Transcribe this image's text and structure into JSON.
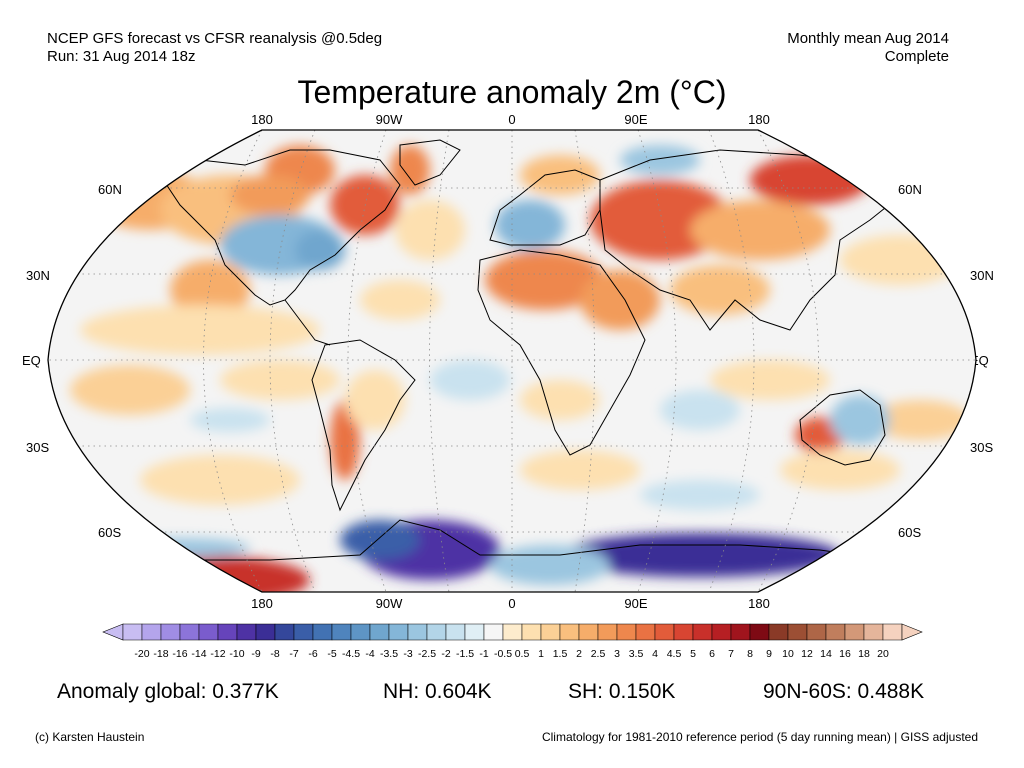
{
  "header": {
    "line1_left": "NCEP GFS forecast vs CFSR reanalysis @0.5deg",
    "line2_left": "Run: 31 Aug 2014 18z",
    "line1_right": "Monthly mean Aug 2014",
    "line2_right": "Complete"
  },
  "map": {
    "title": "Temperature anomaly 2m (°C)",
    "lon_labels": [
      "180",
      "90W",
      "0",
      "90E",
      "180"
    ],
    "lat_labels_left": [
      "60N",
      "30N",
      "EQ",
      "30S",
      "60S"
    ],
    "lat_labels_right": [
      "60N",
      "30N",
      "EQ",
      "30S",
      "60S"
    ],
    "ocean_color": "#f4f4f4",
    "coast_color": "#000000"
  },
  "colorbar": {
    "ticks": [
      "-20",
      "-18",
      "-16",
      "-14",
      "-12",
      "-10",
      "-9",
      "-8",
      "-7",
      "-6",
      "-5",
      "-4.5",
      "-4",
      "-3.5",
      "-3",
      "-2.5",
      "-2",
      "-1.5",
      "-1",
      "-0.5",
      "0.5",
      "1",
      "1.5",
      "2",
      "2.5",
      "3",
      "3.5",
      "4",
      "4.5",
      "5",
      "6",
      "7",
      "8",
      "9",
      "10",
      "12",
      "14",
      "16",
      "18",
      "20"
    ],
    "colors": [
      "#c8bdf2",
      "#b4a5ec",
      "#a08de4",
      "#8c74da",
      "#7a5ccd",
      "#6644bb",
      "#4e32a4",
      "#3b2e96",
      "#34479b",
      "#3a5ea8",
      "#4272b3",
      "#4f84bd",
      "#5e95c5",
      "#70a6ce",
      "#84b6d8",
      "#9bc6e0",
      "#b3d5e8",
      "#c9e2ef",
      "#e0eff5",
      "#f6f6f6",
      "#fdeccd",
      "#fde0b0",
      "#fbd096",
      "#f9bf7e",
      "#f6ad6a",
      "#f29b5a",
      "#ee874d",
      "#e97243",
      "#e25c3a",
      "#d84532",
      "#c8302a",
      "#b61f23",
      "#a0141d",
      "#7e0a14",
      "#8a3a27",
      "#9c4f34",
      "#ae6647",
      "#c07e5d",
      "#d39878",
      "#e5b59b",
      "#f5d2bf"
    ]
  },
  "stats": {
    "global": "Anomaly global: 0.377K",
    "nh": "NH: 0.604K",
    "sh": "SH: 0.150K",
    "band": "90N-60S: 0.488K"
  },
  "footer": {
    "copyright": "(c) Karsten Haustein",
    "climatology": "Climatology for 1981-2010 reference period (5 day running mean) | GISS adjusted"
  }
}
